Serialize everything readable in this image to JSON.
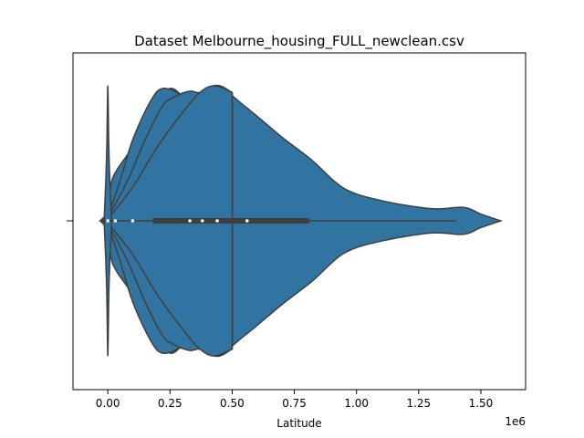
{
  "chart_data": {
    "type": "violin",
    "title": "Dataset Melbourne_housing_FULL_newclean.csv",
    "xlabel": "Latitude",
    "ylabel": "",
    "axis_multiplier": "1e6",
    "orientation": "horizontal",
    "xlim": [
      -0.14,
      1.68
    ],
    "xticks": [
      {
        "value": 0.0,
        "label": "0.00"
      },
      {
        "value": 0.25,
        "label": "0.25"
      },
      {
        "value": 0.5,
        "label": "0.50"
      },
      {
        "value": 0.75,
        "label": "0.75"
      },
      {
        "value": 1.0,
        "label": "1.00"
      },
      {
        "value": 1.25,
        "label": "1.25"
      },
      {
        "value": 1.5,
        "label": "1.50"
      }
    ],
    "fill_color": "#3274a1",
    "edge_color": "#3f3f3f",
    "violins": [
      {
        "density": [
          [
            -0.03,
            0.0
          ],
          [
            0.0,
            0.08
          ],
          [
            0.02,
            0.32
          ],
          [
            0.1,
            0.55
          ],
          [
            0.15,
            0.78
          ],
          [
            0.2,
            0.9
          ],
          [
            0.26,
            0.98
          ],
          [
            0.35,
            0.85
          ],
          [
            0.43,
            1.0
          ],
          [
            0.55,
            0.85
          ],
          [
            0.7,
            0.62
          ],
          [
            0.82,
            0.45
          ],
          [
            0.95,
            0.24
          ],
          [
            1.1,
            0.15
          ],
          [
            1.3,
            0.09
          ],
          [
            1.43,
            0.1
          ],
          [
            1.5,
            0.05
          ],
          [
            1.58,
            0.0
          ]
        ]
      },
      {
        "density": [
          [
            -0.03,
            0.0
          ],
          [
            0.0,
            0.04
          ],
          [
            0.05,
            0.3
          ],
          [
            0.1,
            0.6
          ],
          [
            0.17,
            0.88
          ],
          [
            0.22,
            0.98
          ],
          [
            0.3,
            0.93
          ],
          [
            0.35,
            0.85
          ],
          [
            0.43,
            1.0
          ],
          [
            0.5,
            0.95
          ]
        ]
      },
      {
        "density": [
          [
            -0.03,
            0.0
          ],
          [
            0.0,
            0.03
          ],
          [
            0.08,
            0.3
          ],
          [
            0.15,
            0.6
          ],
          [
            0.22,
            0.85
          ],
          [
            0.27,
            0.92
          ],
          [
            0.33,
            0.96
          ],
          [
            0.37,
            0.95
          ],
          [
            0.43,
            1.0
          ],
          [
            0.5,
            0.95
          ]
        ]
      },
      {
        "density": [
          [
            -0.03,
            0.0
          ],
          [
            0.0,
            0.02
          ],
          [
            0.1,
            0.25
          ],
          [
            0.2,
            0.55
          ],
          [
            0.3,
            0.8
          ],
          [
            0.37,
            0.95
          ],
          [
            0.43,
            1.0
          ],
          [
            0.5,
            0.95
          ]
        ]
      },
      {
        "density": [
          [
            -0.015,
            0.0
          ],
          [
            -0.008,
            0.3
          ],
          [
            -0.004,
            0.55
          ],
          [
            -0.002,
            0.8
          ],
          [
            0.0,
            1.0
          ],
          [
            0.002,
            0.8
          ],
          [
            0.004,
            0.55
          ],
          [
            0.008,
            0.3
          ],
          [
            0.015,
            0.0
          ]
        ]
      }
    ],
    "box": {
      "whisker_low": -0.03,
      "q1": 0.18,
      "q3": 0.81,
      "whisker_high": 1.4
    },
    "markers": [
      0.0,
      0.03,
      0.1,
      0.33,
      0.38,
      0.44,
      0.56
    ]
  }
}
